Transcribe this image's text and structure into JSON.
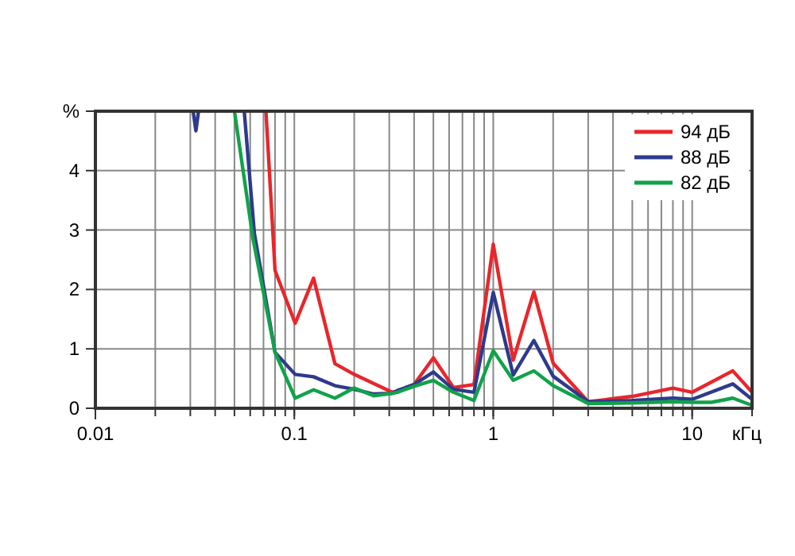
{
  "chart_data": {
    "type": "line",
    "xlabel": "кГц",
    "ylabel": "%",
    "log": "x",
    "xlim": [
      0.01,
      20
    ],
    "ylim": [
      0,
      5
    ],
    "xticks": [
      0.01,
      0.1,
      1,
      10
    ],
    "yticks": [
      0,
      1,
      2,
      3,
      4,
      {
        "value": 5,
        "label": null
      }
    ],
    "grid": true,
    "legend": "top right",
    "line_style": "solid",
    "marker": "none",
    "series": [
      {
        "name": "94 дБ",
        "color": "#e8262b",
        "x": [
          0.072,
          0.08,
          0.101,
          0.125,
          0.16,
          0.2,
          0.31,
          0.33,
          0.4,
          0.5,
          0.63,
          0.8,
          1,
          1.26,
          1.6,
          2,
          3,
          5,
          8,
          10,
          16,
          20
        ],
        "values": [
          5,
          2.32,
          1.43,
          2.19,
          0.75,
          0.57,
          0.27,
          0.29,
          0.4,
          0.85,
          0.35,
          0.4,
          2.76,
          0.81,
          1.96,
          0.76,
          0.11,
          0.2,
          0.34,
          0.27,
          0.63,
          0.27
        ]
      },
      {
        "name": "88 дБ",
        "color": "#2e3a8c",
        "x": [
          0.031,
          0.032,
          0.033,
          0.045,
          0.056,
          0.063,
          0.08,
          0.101,
          0.125,
          0.16,
          0.2,
          0.25,
          0.31,
          0.33,
          0.4,
          0.5,
          0.63,
          0.8,
          1,
          1.26,
          1.6,
          2,
          3,
          5,
          8,
          10,
          16,
          20
        ],
        "values": [
          5,
          4.67,
          5,
          null,
          5,
          2.94,
          0.94,
          0.57,
          0.53,
          0.38,
          0.32,
          0.24,
          0.25,
          0.3,
          0.4,
          0.61,
          0.32,
          0.27,
          1.95,
          0.56,
          1.14,
          0.54,
          0.11,
          0.13,
          0.17,
          0.15,
          0.41,
          0.15
        ]
      },
      {
        "name": "82 дБ",
        "color": "#11a24a",
        "x": [
          0.05,
          0.062,
          0.08,
          0.101,
          0.125,
          0.16,
          0.2,
          0.25,
          0.31,
          0.33,
          0.4,
          0.5,
          0.63,
          0.8,
          1,
          1.26,
          1.6,
          2,
          3,
          5,
          8,
          10,
          12.5,
          16,
          20
        ],
        "values": [
          5,
          2.85,
          0.94,
          0.17,
          0.31,
          0.17,
          0.34,
          0.21,
          0.25,
          0.27,
          0.37,
          0.47,
          0.27,
          0.13,
          0.97,
          0.47,
          0.63,
          0.38,
          0.08,
          0.09,
          0.11,
          0.1,
          0.1,
          0.17,
          0.05
        ]
      }
    ]
  }
}
